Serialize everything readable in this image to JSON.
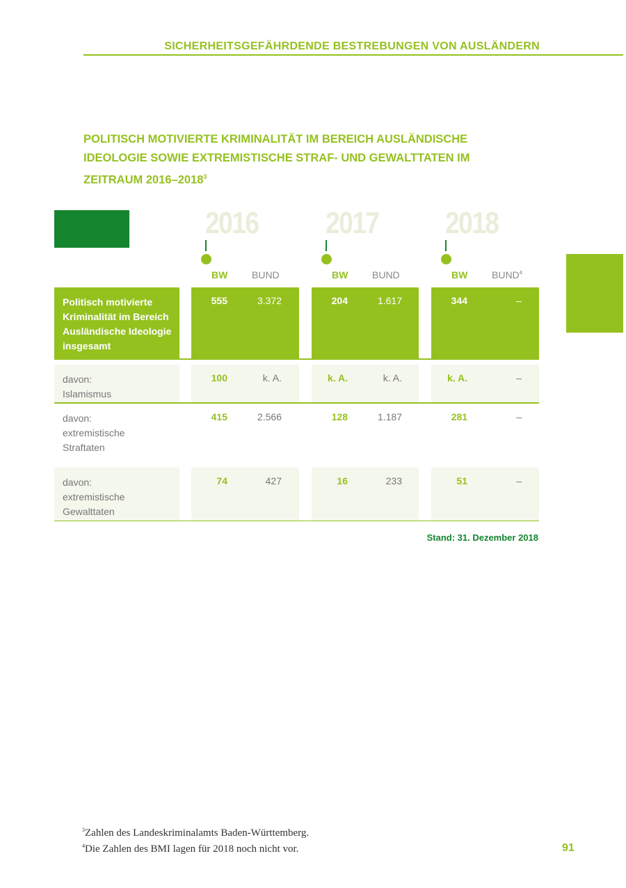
{
  "header": {
    "running_title": "SICHERHEITSGEFÄHRDENDE BESTREBUNGEN VON AUSLÄNDERN"
  },
  "title": {
    "line1": "POLITISCH MOTIVIERTE KRIMINALITÄT IM BEREICH AUSLÄNDISCHE",
    "line2": "IDEOLOGIE SOWIE EXTREMISTISCHE STRAF- UND GEWALTTATEN IM",
    "line3": "ZEITRAUM 2016–2018",
    "footnote_ref": "3"
  },
  "table": {
    "years": [
      "2016",
      "2017",
      "2018"
    ],
    "col_bw": "BW",
    "col_bund": "BUND",
    "bund_2018_footnote": "4",
    "rows": [
      {
        "label": [
          "Politisch motivierte",
          "Kriminalität im Bereich",
          "Ausländische Ideologie",
          "insgesamt"
        ],
        "values": [
          "555",
          "3.372",
          "204",
          "1.617",
          "344",
          "–"
        ]
      },
      {
        "label": [
          "davon:",
          "Islamismus"
        ],
        "values": [
          "100",
          "k. A.",
          "k. A.",
          "k. A.",
          "k. A.",
          "–"
        ]
      },
      {
        "label": [
          "davon:",
          "extremistische",
          "Straftaten"
        ],
        "values": [
          "415",
          "2.566",
          "128",
          "1.187",
          "281",
          "–"
        ]
      },
      {
        "label": [
          "davon:",
          "extremistische",
          "Gewalttaten"
        ],
        "values": [
          "74",
          "427",
          "16",
          "233",
          "51",
          "–"
        ]
      }
    ],
    "stand": "Stand: 31. Dezember 2018"
  },
  "footnotes": [
    {
      "num": "3",
      "text": "Zahlen des Landeskriminalamts Baden-Württemberg."
    },
    {
      "num": "4",
      "text": "Die Zahlen des BMI lagen für 2018 noch nicht vor."
    }
  ],
  "page_number": "91",
  "colors": {
    "accent": "#95c11f",
    "dark_green": "#15842f",
    "light_bg": "#f4f7ec"
  }
}
